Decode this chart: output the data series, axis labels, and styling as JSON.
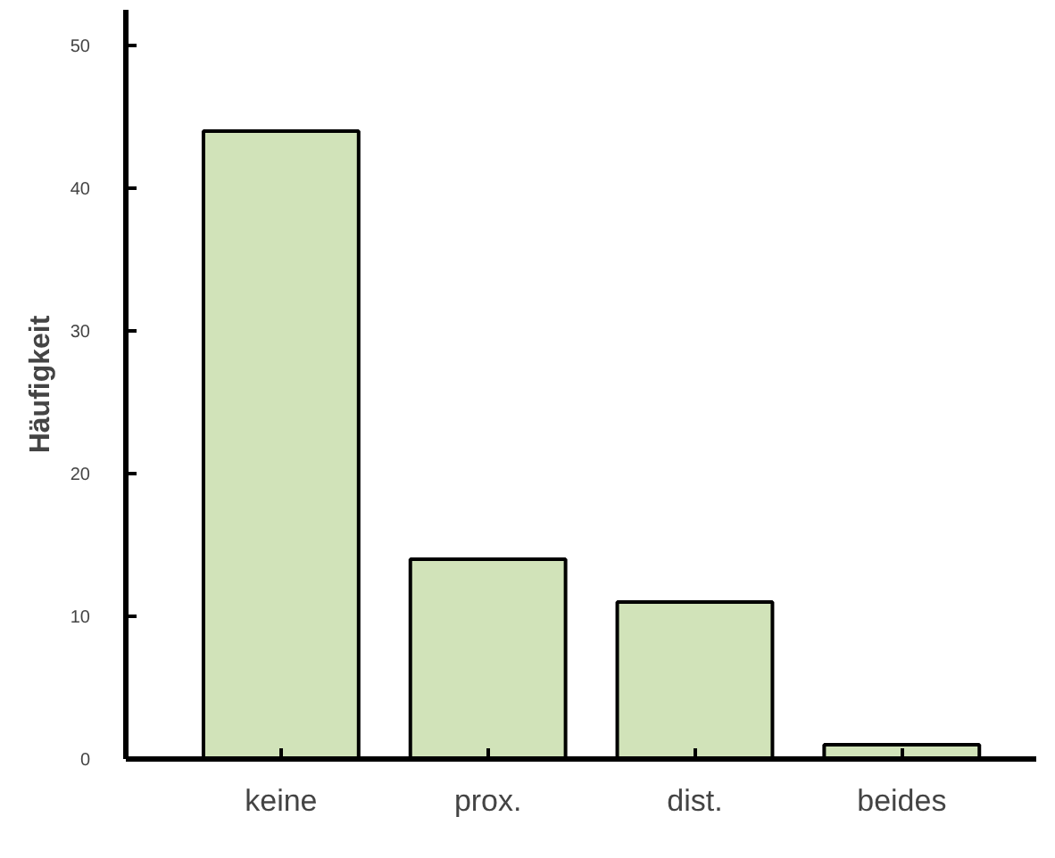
{
  "chart_data": {
    "type": "bar",
    "ylabel": "Häufigkeit",
    "categories": [
      "keine",
      "prox.",
      "dist.",
      "beides"
    ],
    "values": [
      44,
      14,
      11,
      1
    ],
    "color": "#d1e3b9",
    "ylim": [
      0,
      52.5
    ],
    "yticks": [
      0,
      10,
      20,
      30,
      40,
      50
    ],
    "grid": false
  }
}
